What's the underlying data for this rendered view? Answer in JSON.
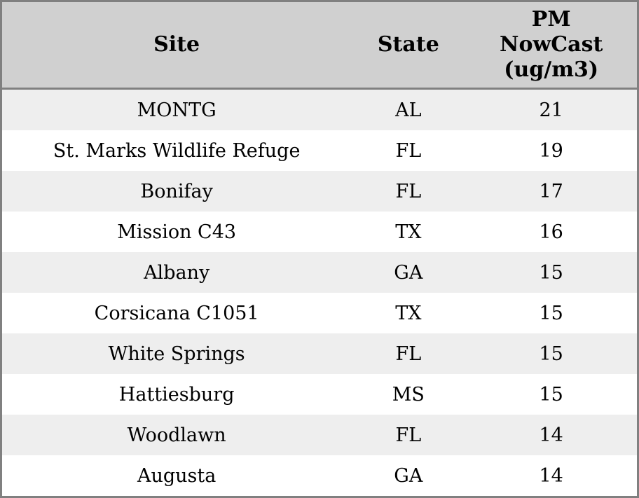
{
  "colors": {
    "outer_border": "#808080",
    "header_bg": "#d0d0d0",
    "header_separator": "#808080",
    "row_stripe_bg": "#eeeeee",
    "row_plain_bg": "#ffffff",
    "text": "#000000"
  },
  "table": {
    "headers": {
      "site": "Site",
      "state": "State",
      "pm": "PM\nNowCast\n(ug/m3)"
    },
    "rows": [
      {
        "site": "MONTG",
        "state": "AL",
        "pm": "21"
      },
      {
        "site": "St. Marks Wildlife Refuge",
        "state": "FL",
        "pm": "19"
      },
      {
        "site": "Bonifay",
        "state": "FL",
        "pm": "17"
      },
      {
        "site": "Mission C43",
        "state": "TX",
        "pm": "16"
      },
      {
        "site": "Albany",
        "state": "GA",
        "pm": "15"
      },
      {
        "site": "Corsicana C1051",
        "state": "TX",
        "pm": "15"
      },
      {
        "site": "White Springs",
        "state": "FL",
        "pm": "15"
      },
      {
        "site": "Hattiesburg",
        "state": "MS",
        "pm": "15"
      },
      {
        "site": "Woodlawn",
        "state": "FL",
        "pm": "14"
      },
      {
        "site": "Augusta",
        "state": "GA",
        "pm": "14"
      }
    ]
  },
  "chart_data": {
    "type": "table",
    "columns": [
      "Site",
      "State",
      "PM NowCast (ug/m3)"
    ],
    "rows": [
      [
        "MONTG",
        "AL",
        21
      ],
      [
        "St. Marks Wildlife Refuge",
        "FL",
        19
      ],
      [
        "Bonifay",
        "FL",
        17
      ],
      [
        "Mission C43",
        "TX",
        16
      ],
      [
        "Albany",
        "GA",
        15
      ],
      [
        "Corsicana C1051",
        "TX",
        15
      ],
      [
        "White Springs",
        "FL",
        15
      ],
      [
        "Hattiesburg",
        "MS",
        15
      ],
      [
        "Woodlawn",
        "FL",
        14
      ],
      [
        "Augusta",
        "GA",
        14
      ]
    ],
    "title": "",
    "notes": "Sites ranked by PM NowCast concentration, striped rows, gray header"
  }
}
